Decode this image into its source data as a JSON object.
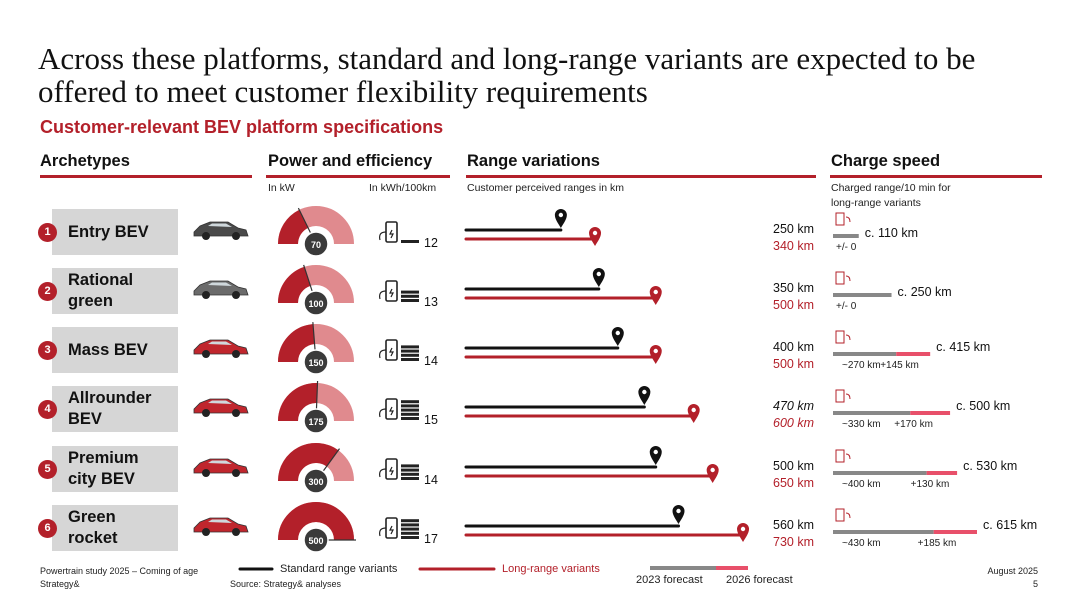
{
  "title": "Across these platforms, standard and long-range variants are expected to be offered to meet customer flexibility requirements",
  "subtitle": "Customer-relevant BEV platform specifications",
  "columns": {
    "archetypes": "Archetypes",
    "power": "Power and efficiency",
    "range": "Range variations",
    "charge": "Charge speed"
  },
  "subheaders": {
    "power_unit": "In kW",
    "eff_unit": "In kWh/100km",
    "range_note": "Customer perceived ranges in km",
    "charge_note_1": "Charged range/10 min for",
    "charge_note_2": "long-range variants"
  },
  "colors": {
    "accent": "#b3202a",
    "light_red": "#e08a8e",
    "grey": "#888888",
    "box": "#d6d6d6"
  },
  "chart_data": {
    "type": "table",
    "title": "Customer-relevant BEV platform specifications",
    "rows": [
      {
        "num": "1",
        "name_1": "Entry BEV",
        "name_2": "",
        "power": 70,
        "power_label": "70",
        "efficiency": 12,
        "efficiency_label": "12",
        "std_range": 250,
        "std_label": "250 km",
        "lr_range": 340,
        "lr_label": "340 km",
        "charge_base": 110,
        "charge_add": 0,
        "charge_total": "c. 110 km",
        "charge_base_label": "+/- 0",
        "charge_add_label": ""
      },
      {
        "num": "2",
        "name_1": "Rational",
        "name_2": "green",
        "power": 100,
        "power_label": "100",
        "efficiency": 13,
        "efficiency_label": "13",
        "std_range": 350,
        "std_label": "350 km",
        "lr_range": 500,
        "lr_label": "500 km",
        "charge_base": 250,
        "charge_add": 0,
        "charge_total": "c. 250 km",
        "charge_base_label": "+/- 0",
        "charge_add_label": ""
      },
      {
        "num": "3",
        "name_1": "Mass BEV",
        "name_2": "",
        "power": 150,
        "power_label": "150",
        "efficiency": 14,
        "efficiency_label": "14",
        "std_range": 400,
        "std_label": "400 km",
        "lr_range": 500,
        "lr_label": "500 km",
        "charge_base": 270,
        "charge_add": 145,
        "charge_total": "c. 415 km",
        "charge_base_label": "~270 km",
        "charge_add_label": "+145 km"
      },
      {
        "num": "4",
        "name_1": "Allrounder",
        "name_2": "BEV",
        "power": 175,
        "power_label": "175",
        "efficiency": 15,
        "efficiency_label": "15",
        "std_range": 470,
        "std_label": "470 km",
        "lr_range": 600,
        "lr_label": "600 km",
        "charge_base": 330,
        "charge_add": 170,
        "charge_total": "c. 500 km",
        "charge_base_label": "~330 km",
        "charge_add_label": "+170 km"
      },
      {
        "num": "5",
        "name_1": "Premium",
        "name_2": "city BEV",
        "power": 300,
        "power_label": "300",
        "efficiency": 14,
        "efficiency_label": "14",
        "std_range": 500,
        "std_label": "500 km",
        "lr_range": 650,
        "lr_label": "650 km",
        "charge_base": 400,
        "charge_add": 130,
        "charge_total": "c. 530 km",
        "charge_base_label": "~400 km",
        "charge_add_label": "+130 km"
      },
      {
        "num": "6",
        "name_1": "Green",
        "name_2": "rocket",
        "power": 500,
        "power_label": "500",
        "efficiency": 17,
        "efficiency_label": "17",
        "std_range": 560,
        "std_label": "560 km",
        "lr_range": 730,
        "lr_label": "730 km",
        "charge_base": 430,
        "charge_add": 185,
        "charge_total": "c. 615 km",
        "charge_base_label": "~430 km",
        "charge_add_label": "+185 km"
      }
    ],
    "power_max": 500,
    "range_max": 730,
    "charge_max": 615,
    "efficiency_bars_max": 5
  },
  "legend": {
    "standard": "Standard range variants",
    "long": "Long-range variants",
    "f2023": "2023 forecast",
    "f2026": "2026 forecast"
  },
  "footer": {
    "study": "Powertrain study 2025 – Coming of age",
    "brand": "Strategy&",
    "source": "Source: Strategy& analyses",
    "date": "August 2025",
    "page": "5"
  }
}
